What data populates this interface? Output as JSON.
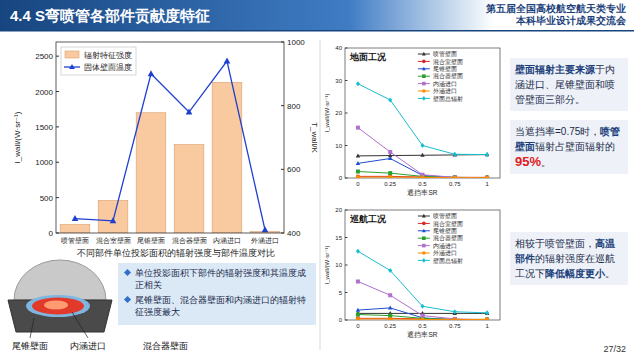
{
  "header": {
    "title": "4.4 S弯喷管各部件贡献度特征",
    "event": [
      "第五届全国高校航空航天类专业",
      "本科毕业设计成果交流会"
    ],
    "page": "27/32"
  },
  "chart_data": [
    {
      "type": "bar",
      "title": "不同部件单位投影面积的辐射强度与部件温度对比",
      "categories": [
        "喷管壁面",
        "混合室壁面",
        "尾锥壁面",
        "混合器壁面",
        "内涵进口",
        "外涵进口"
      ],
      "ylabel": "I_wall/(W·sr⁻¹)",
      "y2label": "T_wall/K",
      "ylim": [
        0,
        2700
      ],
      "yticks": [
        0,
        500,
        1000,
        1500,
        2000,
        2500
      ],
      "y2lim": [
        400,
        1000
      ],
      "y2ticks": [
        400,
        600,
        800,
        1000
      ],
      "grid": false,
      "legend": "upper left",
      "series": [
        {
          "name": "辐射特征强度",
          "type": "bar",
          "color": "#f9c9a0",
          "values": [
            120,
            460,
            1700,
            1250,
            2130,
            20
          ]
        },
        {
          "name": "固体壁面温度",
          "type": "line",
          "axis": "y2",
          "color": "#1f3fd0",
          "marker": "triangle",
          "values": [
            445,
            438,
            900,
            780,
            940,
            410
          ]
        }
      ]
    },
    {
      "type": "line",
      "title": "地面工况",
      "x": [
        0,
        0.25,
        0.5,
        0.75,
        1
      ],
      "xlabel": "遮挡率SR",
      "ylabel": "I_wall/(W·sr⁻¹)",
      "xlim": [
        -0.1,
        1.1
      ],
      "xticks": [
        0,
        0.25,
        0.5,
        0.75,
        1
      ],
      "ylim": [
        0,
        40
      ],
      "yticks": [
        0,
        10,
        20,
        30,
        40
      ],
      "grid": false,
      "legend": "upper right",
      "series": [
        {
          "name": "喷管壁面",
          "color": "#333333",
          "marker": "triangle",
          "values": [
            6.8,
            6.9,
            7.0,
            7.1,
            7.2
          ]
        },
        {
          "name": "混合室壁面",
          "color": "#d62728",
          "marker": "circle",
          "values": [
            0.5,
            0.5,
            0.3,
            0.2,
            0.2
          ]
        },
        {
          "name": "尾锥壁面",
          "color": "#1f4fd0",
          "marker": "triangle",
          "values": [
            4.5,
            6,
            0.8,
            0.1,
            0
          ]
        },
        {
          "name": "混合器壁面",
          "color": "#2ca02c",
          "marker": "square",
          "values": [
            2,
            1.5,
            0.5,
            0.2,
            0.1
          ]
        },
        {
          "name": "内涵进口",
          "color": "#b070d0",
          "marker": "square",
          "values": [
            15.5,
            8,
            1,
            0.2,
            0
          ]
        },
        {
          "name": "外涵进口",
          "color": "#ff8c00",
          "marker": "circle",
          "values": [
            0.3,
            0.3,
            0.2,
            0.1,
            0.1
          ]
        },
        {
          "name": "壁面总辐射",
          "color": "#17becf",
          "marker": "diamond",
          "values": [
            29,
            24,
            10,
            7.3,
            7.2
          ]
        }
      ]
    },
    {
      "type": "line",
      "title": "巡航工况",
      "x": [
        0,
        0.25,
        0.5,
        0.75,
        1
      ],
      "xlabel": "遮挡率SR",
      "ylabel": "I_wall/(W·sr⁻¹)",
      "xlim": [
        -0.1,
        1.1
      ],
      "xticks": [
        0,
        0.25,
        0.5,
        0.75,
        1
      ],
      "ylim": [
        0,
        20
      ],
      "yticks": [
        0,
        5,
        10,
        15,
        20
      ],
      "grid": false,
      "legend": "upper right",
      "series": [
        {
          "name": "喷管壁面",
          "color": "#333333",
          "marker": "triangle",
          "values": [
            1.2,
            1.2,
            1.2,
            1.2,
            1.2
          ]
        },
        {
          "name": "混合室壁面",
          "color": "#d62728",
          "marker": "circle",
          "values": [
            0.3,
            0.3,
            0.2,
            0.1,
            0.1
          ]
        },
        {
          "name": "尾锥壁面",
          "color": "#1f4fd0",
          "marker": "triangle",
          "values": [
            1.8,
            2.2,
            0.4,
            0,
            0
          ]
        },
        {
          "name": "混合器壁面",
          "color": "#2ca02c",
          "marker": "square",
          "values": [
            1,
            0.8,
            0.3,
            0.1,
            0.1
          ]
        },
        {
          "name": "内涵进口",
          "color": "#b070d0",
          "marker": "square",
          "values": [
            7,
            4.5,
            0.8,
            0.2,
            0
          ]
        },
        {
          "name": "外涵进口",
          "color": "#ff8c00",
          "marker": "circle",
          "values": [
            0.2,
            0.2,
            0.1,
            0.1,
            0.1
          ]
        },
        {
          "name": "壁面总辐射",
          "color": "#17becf",
          "marker": "diamond",
          "values": [
            12.5,
            9,
            2.5,
            1.5,
            1.3
          ]
        }
      ]
    }
  ],
  "illustration": {
    "labels": [
      "尾锥壁面",
      "内涵进口",
      "混合器壁面"
    ]
  },
  "bullets": [
    "单位投影面积下部件的辐射强度和其温度成正相关",
    "尾锥壁面、混合器壁面和内涵进口的辐射特征强度最大"
  ],
  "notes": [
    {
      "runs": [
        {
          "text": "壁面辐射主要来源",
          "style": "strong"
        },
        {
          "text": "于内涵进口、尾锥壁面和喷管壁面三部分。",
          "style": "plain"
        }
      ]
    },
    {
      "runs": [
        {
          "text": "当遮挡率=0.75时，",
          "style": "plain"
        },
        {
          "text": "喷管壁面",
          "style": "strong"
        },
        {
          "text": "辐射占壁面辐射的",
          "style": "plain"
        },
        {
          "text": "95%",
          "style": "alert"
        },
        {
          "text": "。",
          "style": "plain"
        }
      ]
    },
    {
      "runs": [
        {
          "text": "相较于喷管壁面，",
          "style": "plain"
        },
        {
          "text": "高温部件",
          "style": "strong"
        },
        {
          "text": "的辐射强度在巡航工况下",
          "style": "plain"
        },
        {
          "text": "降低幅度更小",
          "style": "strong"
        },
        {
          "text": "。",
          "style": "plain"
        }
      ]
    }
  ]
}
